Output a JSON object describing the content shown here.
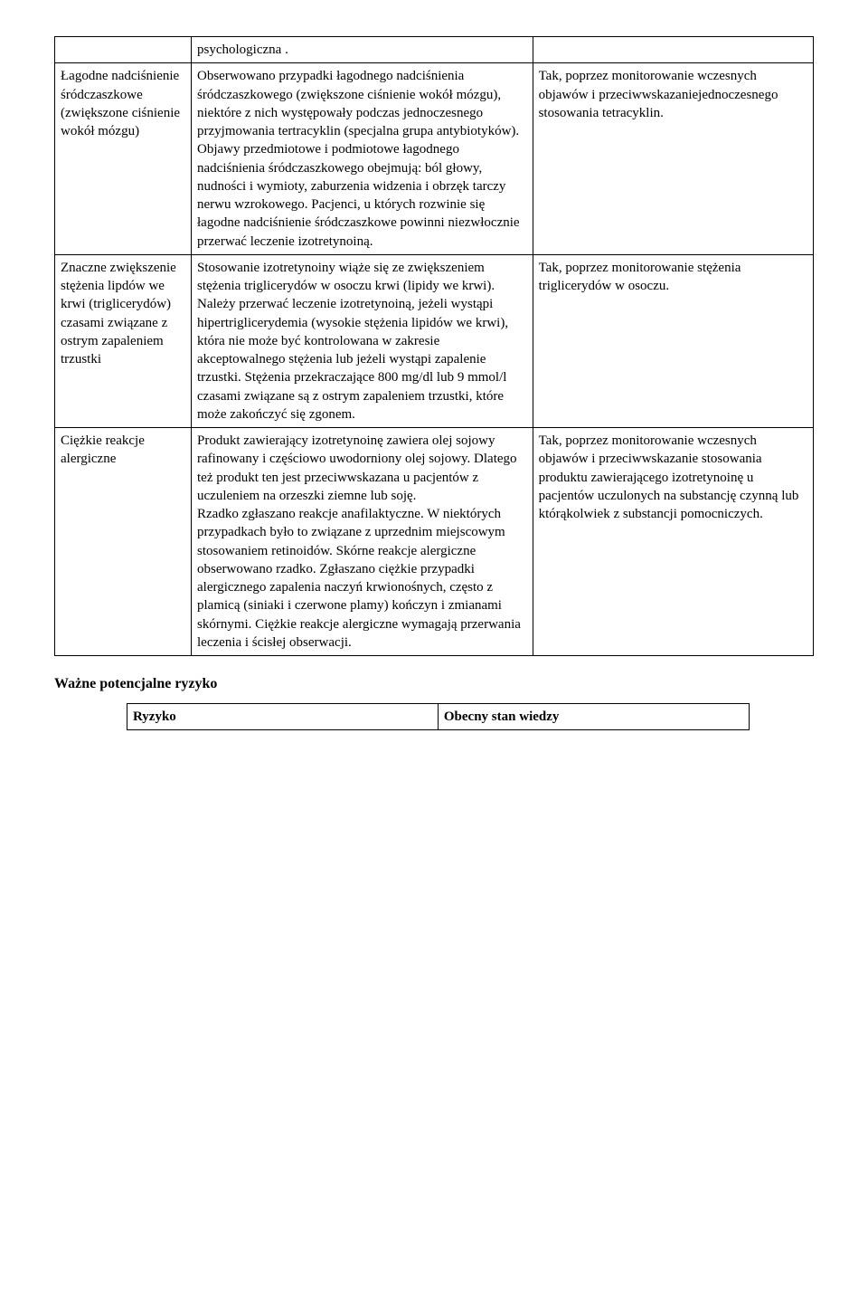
{
  "mainTable": {
    "rows": [
      {
        "c1": "",
        "c2": "psychologiczna .",
        "c3": ""
      },
      {
        "c1": "Łagodne nadciśnienie śródczaszkowe (zwiększone ciśnienie wokół mózgu)",
        "c2": "Obserwowano przypadki łagodnego nadciśnienia śródczaszkowego (zwiększone ciśnienie wokół mózgu), niektóre z nich występowały podczas jednoczesnego przyjmowania tertracyklin (specjalna grupa antybiotyków). Objawy przedmiotowe i podmiotowe łagodnego nadciśnienia śródczaszkowego obejmują: ból głowy, nudności i wymioty, zaburzenia widzenia i obrzęk tarczy nerwu wzrokowego. Pacjenci, u których rozwinie się łagodne nadciśnienie śródczaszkowe powinni niezwłocznie przerwać leczenie izotretynoiną.",
        "c3": "Tak, poprzez monitorowanie wczesnych objawów i przeciwwskazaniejednoczesnego stosowania tetracyklin."
      },
      {
        "c1": "Znaczne zwiększenie stężenia lipdów we krwi (triglicerydów) czasami związane z ostrym zapaleniem trzustki",
        "c2": "Stosowanie izotretynoiny wiąże się ze zwiększeniem stężenia triglicerydów w osoczu krwi (lipidy we krwi). Należy przerwać leczenie izotretynoiną, jeżeli wystąpi hipertriglicerydemia (wysokie stężenia lipidów we krwi), która nie może być kontrolowana w zakresie akceptowalnego stężenia lub jeżeli wystąpi zapalenie trzustki. Stężenia przekraczające 800 mg/dl lub 9 mmol/l czasami związane są z ostrym zapaleniem trzustki, które może zakończyć się zgonem.",
        "c3": "Tak, poprzez monitorowanie stężenia triglicerydów w osoczu."
      },
      {
        "c1": "Ciężkie reakcje alergiczne",
        "c2": "Produkt zawierający izotretynoinę zawiera olej sojowy rafinowany i częściowo uwodorniony olej sojowy. Dlatego też produkt ten jest przeciwwskazana u pacjentów z uczuleniem na orzeszki ziemne lub soję.\nRzadko zgłaszano reakcje anafilaktyczne.  W niektórych przypadkach było to związane z uprzednim miejscowym stosowaniem retinoidów. Skórne reakcje alergiczne obserwowano rzadko. Zgłaszano ciężkie  przypadki alergicznego zapalenia naczyń krwionośnych, często z plamicą (siniaki i czerwone plamy) kończyn i  zmianami  skórnymi. Ciężkie reakcje alergiczne wymagają przerwania leczenia i ścisłej obserwacji.",
        "c3": "Tak, poprzez monitorowanie wczesnych objawów i przeciwwskazanie stosowania produktu zawierającego izotretynoinę u pacjentów uczulonych na substancję czynną lub którąkolwiek z substancji pomocniczych."
      }
    ]
  },
  "sectionHeading": "Ważne potencjalne ryzyko",
  "riskTable": {
    "header": {
      "c1": "Ryzyko",
      "c2": "Obecny stan wiedzy"
    }
  }
}
